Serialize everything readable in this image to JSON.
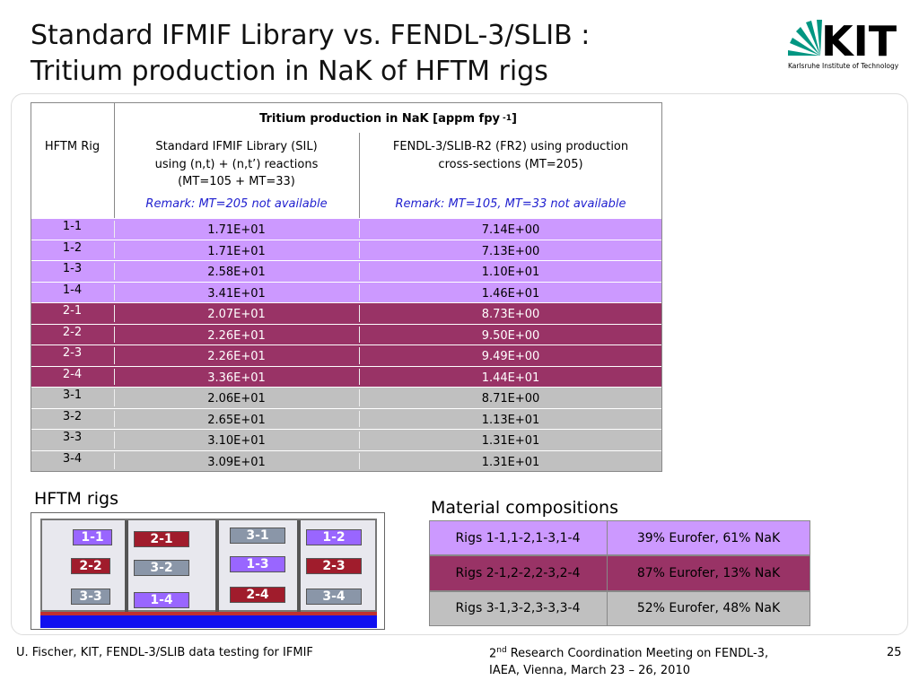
{
  "title": [
    "Standard IFMIF Library vs. FENDL-3/SLIB :",
    "Tritium production in NaK of HFTM rigs"
  ],
  "logo": {
    "mark": "KIT",
    "name": "Karlsruhe Institute of Technology"
  },
  "table": {
    "group_header": {
      "text": "Tritium production in NaK [appm fpy",
      "sup": "-1",
      "end": "]"
    },
    "columns": [
      [
        "HFTM Rig"
      ],
      [
        "Standard IFMIF Library (SIL)",
        "using (n,t) + (n,t’) reactions",
        "(MT=105 + MT=33)"
      ],
      [
        "FENDL-3/SLIB-R2 (FR2) using production",
        "cross-sections (MT=205)"
      ]
    ],
    "remarks": [
      "Remark: MT=205 not available",
      "Remark: MT=105, MT=33 not available"
    ],
    "rows": [
      [
        "1-1",
        "1.71E+01",
        "7.14E+00"
      ],
      [
        "1-2",
        "1.71E+01",
        "7.13E+00"
      ],
      [
        "1-3",
        "2.58E+01",
        "1.10E+01"
      ],
      [
        "1-4",
        "3.41E+01",
        "1.46E+01"
      ],
      [
        "2-1",
        "2.07E+01",
        "8.73E+00"
      ],
      [
        "2-2",
        "2.26E+01",
        "9.50E+00"
      ],
      [
        "2-3",
        "2.26E+01",
        "9.49E+00"
      ],
      [
        "2-4",
        "3.36E+01",
        "1.44E+01"
      ],
      [
        "3-1",
        "2.06E+01",
        "8.71E+00"
      ],
      [
        "3-2",
        "2.65E+01",
        "1.13E+01"
      ],
      [
        "3-3",
        "3.10E+01",
        "1.31E+01"
      ],
      [
        "3-4",
        "3.09E+01",
        "1.31E+01"
      ]
    ]
  },
  "rigs": {
    "title": "HFTM rigs",
    "labels": [
      "1-1",
      "2-1",
      "3-1",
      "1-2",
      "2-2",
      "3-2",
      "1-3",
      "2-3",
      "3-3",
      "1-4",
      "2-4",
      "3-4"
    ]
  },
  "materials": {
    "title": "Material compositions",
    "rows": [
      [
        "Rigs 1-1,1-2,1-3,1-4",
        "39% Eurofer, 61% NaK"
      ],
      [
        "Rigs 2-1,2-2,2-3,2-4",
        "87% Eurofer, 13% NaK"
      ],
      [
        "Rigs 3-1,3-2,3-3,3-4",
        "52% Eurofer, 48% NaK"
      ]
    ]
  },
  "footer": {
    "left": "U. Fischer, KIT, FENDL-3/SLIB data testing for IFMIF",
    "center": {
      "num": "2",
      "sup": "nd",
      "line1": "Research Coordination Meeting on FENDL-3,",
      "line2": "IAEA, Vienna, March 23 – 26, 2010"
    },
    "page": "25"
  }
}
